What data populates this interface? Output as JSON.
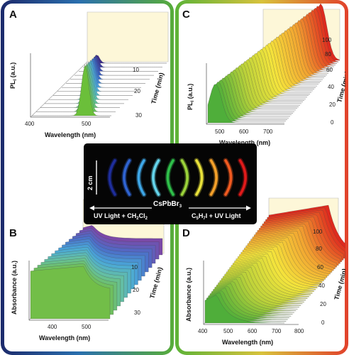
{
  "panels": {
    "a": {
      "letter": "A",
      "ylabel": "PL",
      "ylabel_sub": "I",
      "ylabel_unit": "(a.u.)",
      "xlabel": "Wavelength (nm)",
      "x_ticks": [
        "400",
        "500"
      ],
      "time_label": "Time (min)",
      "time_ticks": [
        "10",
        "20",
        "30"
      ],
      "colors": [
        "#3c2d8c",
        "#3b63c4",
        "#4aa8e0",
        "#5fc4a0",
        "#6bbf3a"
      ]
    },
    "b": {
      "letter": "B",
      "ylabel": "Absorbance (a.u.)",
      "xlabel": "Wavelength (nm)",
      "x_ticks": [
        "400",
        "500"
      ],
      "time_label": "Time (min)",
      "time_ticks": [
        "10",
        "20",
        "30"
      ],
      "colors": [
        "#7b49a8",
        "#4c6fc8",
        "#4aa8d8",
        "#66c0a0",
        "#72be48"
      ]
    },
    "c": {
      "letter": "C",
      "ylabel": "PL",
      "ylabel_sub": "I",
      "ylabel_unit": "(a.u.)",
      "xlabel": "Wavelength (nm)",
      "x_ticks": [
        "500",
        "600",
        "700"
      ],
      "time_label": "Time (min)",
      "time_ticks": [
        "0",
        "20",
        "40",
        "60",
        "80",
        "100"
      ],
      "colors": [
        "#4fae3a",
        "#b9d13a",
        "#f4e43c",
        "#f2a431",
        "#de2a1e"
      ]
    },
    "d": {
      "letter": "D",
      "ylabel": "Absorbance (a.u.)",
      "xlabel": "Wavelength (nm)",
      "x_ticks": [
        "400",
        "500",
        "600",
        "700",
        "800"
      ],
      "time_label": "Time (min)",
      "time_ticks": [
        "0",
        "20",
        "40",
        "60",
        "80",
        "100"
      ],
      "colors": [
        "#4fae3a",
        "#b9d13a",
        "#f4e43c",
        "#f2a431",
        "#de2a1e"
      ]
    }
  },
  "photo": {
    "scale_label": "2 cm",
    "compound": "CsPbBr",
    "compound_sub": "3",
    "left_arrow_prefix": "UV Light + CH",
    "left_arrow_sub1": "2",
    "left_arrow_mid": "Cl",
    "left_arrow_sub2": "2",
    "right_arrow_prefix": "C",
    "right_arrow_sub1": "5",
    "right_arrow_mid": "H",
    "right_arrow_sub2": "7",
    "right_arrow_suffix": "I + UV Light",
    "arc_colors": [
      "#1e2d9a",
      "#2f63d0",
      "#3ea6e6",
      "#64d3ea",
      "#2fbf4a",
      "#9bd33a",
      "#e8e13a",
      "#f4a02a",
      "#f05a20",
      "#e01a1a"
    ]
  }
}
